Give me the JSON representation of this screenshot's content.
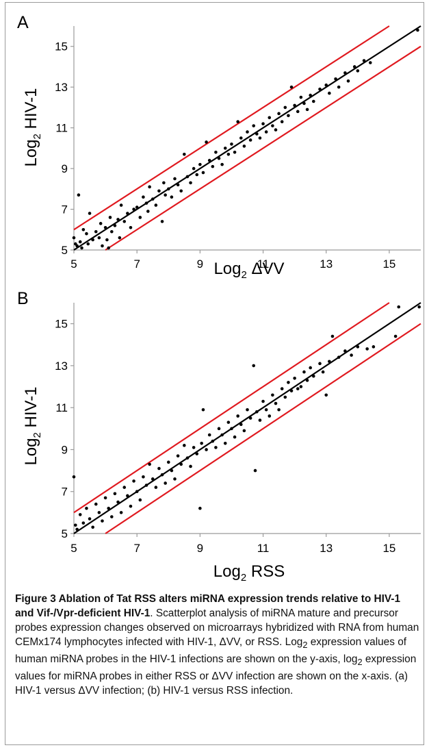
{
  "panels": [
    {
      "label": "A",
      "xlabel_main": "Log",
      "xlabel_sub": "2",
      "xlabel_rest": " ΔVV",
      "ylabel_main": "Log",
      "ylabel_sub": "2",
      "ylabel_rest": " HIV-1"
    },
    {
      "label": "B",
      "xlabel_main": "Log",
      "xlabel_sub": "2",
      "xlabel_rest": " RSS",
      "ylabel_main": "Log",
      "ylabel_sub": "2",
      "ylabel_rest": " HIV-1"
    }
  ],
  "chart_data": [
    {
      "type": "scatter",
      "panel": "A",
      "xlabel": "Log2 ΔVV",
      "ylabel": "Log2 HIV-1",
      "xlim": [
        5,
        16
      ],
      "ylim": [
        5,
        16
      ],
      "xticks": [
        5,
        7,
        9,
        11,
        13,
        15
      ],
      "yticks": [
        5,
        7,
        9,
        11,
        13,
        15
      ],
      "lines": [
        {
          "name": "",
          "color": "#000000",
          "x": [
            5,
            16
          ],
          "y": [
            5,
            16
          ]
        },
        {
          "name": "",
          "color": "#e0191f",
          "x": [
            5,
            15
          ],
          "y": [
            6,
            16
          ]
        },
        {
          "name": "",
          "color": "#e0191f",
          "x": [
            6,
            16
          ],
          "y": [
            5,
            15
          ]
        }
      ],
      "points": [
        [
          5.0,
          5.6
        ],
        [
          5.05,
          5.3
        ],
        [
          5.1,
          5.2
        ],
        [
          5.15,
          7.7
        ],
        [
          5.2,
          5.4
        ],
        [
          5.25,
          5.1
        ],
        [
          5.3,
          6.0
        ],
        [
          5.4,
          5.8
        ],
        [
          5.45,
          5.3
        ],
        [
          5.5,
          6.8
        ],
        [
          5.6,
          5.5
        ],
        [
          5.7,
          5.9
        ],
        [
          5.8,
          5.6
        ],
        [
          5.85,
          6.3
        ],
        [
          5.9,
          5.2
        ],
        [
          6.0,
          6.1
        ],
        [
          6.05,
          5.5
        ],
        [
          6.1,
          5.1
        ],
        [
          6.15,
          6.6
        ],
        [
          6.2,
          5.9
        ],
        [
          6.3,
          6.2
        ],
        [
          6.4,
          6.5
        ],
        [
          6.45,
          5.6
        ],
        [
          6.5,
          7.2
        ],
        [
          6.6,
          6.4
        ],
        [
          6.7,
          6.8
        ],
        [
          6.8,
          6.1
        ],
        [
          6.9,
          7.0
        ],
        [
          7.0,
          7.1
        ],
        [
          7.1,
          6.6
        ],
        [
          7.2,
          7.6
        ],
        [
          7.3,
          7.3
        ],
        [
          7.35,
          6.9
        ],
        [
          7.4,
          8.1
        ],
        [
          7.5,
          7.5
        ],
        [
          7.6,
          7.2
        ],
        [
          7.7,
          7.9
        ],
        [
          7.8,
          6.4
        ],
        [
          7.85,
          8.3
        ],
        [
          7.9,
          7.7
        ],
        [
          8.0,
          8.0
        ],
        [
          8.1,
          7.6
        ],
        [
          8.2,
          8.5
        ],
        [
          8.3,
          8.2
        ],
        [
          8.4,
          7.9
        ],
        [
          8.5,
          9.7
        ],
        [
          8.6,
          8.6
        ],
        [
          8.7,
          8.3
        ],
        [
          8.8,
          9.0
        ],
        [
          8.9,
          8.7
        ],
        [
          9.0,
          9.2
        ],
        [
          9.1,
          8.8
        ],
        [
          9.2,
          10.3
        ],
        [
          9.3,
          9.4
        ],
        [
          9.4,
          9.1
        ],
        [
          9.5,
          9.8
        ],
        [
          9.6,
          9.5
        ],
        [
          9.7,
          9.2
        ],
        [
          9.8,
          10.0
        ],
        [
          9.9,
          9.7
        ],
        [
          10.0,
          10.2
        ],
        [
          10.1,
          9.8
        ],
        [
          10.2,
          11.3
        ],
        [
          10.3,
          10.5
        ],
        [
          10.4,
          10.1
        ],
        [
          10.5,
          10.8
        ],
        [
          10.6,
          10.4
        ],
        [
          10.7,
          11.1
        ],
        [
          10.8,
          10.7
        ],
        [
          10.9,
          10.5
        ],
        [
          11.0,
          11.2
        ],
        [
          11.1,
          10.8
        ],
        [
          11.2,
          11.5
        ],
        [
          11.3,
          11.1
        ],
        [
          11.4,
          10.9
        ],
        [
          11.5,
          11.7
        ],
        [
          11.6,
          11.3
        ],
        [
          11.7,
          12.0
        ],
        [
          11.8,
          11.6
        ],
        [
          11.9,
          13.0
        ],
        [
          12.0,
          12.1
        ],
        [
          12.1,
          11.8
        ],
        [
          12.2,
          12.5
        ],
        [
          12.3,
          12.2
        ],
        [
          12.4,
          11.9
        ],
        [
          12.5,
          12.6
        ],
        [
          12.6,
          12.3
        ],
        [
          12.8,
          12.9
        ],
        [
          13.0,
          13.1
        ],
        [
          13.1,
          12.7
        ],
        [
          13.3,
          13.4
        ],
        [
          13.4,
          13.0
        ],
        [
          13.6,
          13.7
        ],
        [
          13.7,
          13.3
        ],
        [
          13.9,
          14.0
        ],
        [
          14.0,
          13.8
        ],
        [
          14.2,
          14.3
        ],
        [
          14.4,
          14.2
        ],
        [
          15.9,
          15.8
        ]
      ]
    },
    {
      "type": "scatter",
      "panel": "B",
      "xlabel": "Log2 RSS",
      "ylabel": "Log2 HIV-1",
      "xlim": [
        5,
        16
      ],
      "ylim": [
        5,
        16
      ],
      "xticks": [
        5,
        7,
        9,
        11,
        13,
        15
      ],
      "yticks": [
        5,
        7,
        9,
        11,
        13,
        15
      ],
      "lines": [
        {
          "name": "",
          "color": "#000000",
          "x": [
            5,
            16
          ],
          "y": [
            5,
            16
          ]
        },
        {
          "name": "",
          "color": "#e0191f",
          "x": [
            5,
            15
          ],
          "y": [
            6,
            16
          ]
        },
        {
          "name": "",
          "color": "#e0191f",
          "x": [
            6,
            16
          ],
          "y": [
            5,
            15
          ]
        }
      ],
      "points": [
        [
          5.0,
          7.7
        ],
        [
          5.05,
          5.4
        ],
        [
          5.1,
          5.2
        ],
        [
          5.2,
          5.9
        ],
        [
          5.3,
          5.5
        ],
        [
          5.4,
          6.2
        ],
        [
          5.5,
          5.7
        ],
        [
          5.6,
          5.3
        ],
        [
          5.7,
          6.4
        ],
        [
          5.8,
          6.0
        ],
        [
          5.9,
          5.6
        ],
        [
          6.0,
          6.7
        ],
        [
          6.1,
          6.2
        ],
        [
          6.2,
          5.8
        ],
        [
          6.3,
          6.9
        ],
        [
          6.4,
          6.5
        ],
        [
          6.5,
          6.0
        ],
        [
          6.6,
          7.2
        ],
        [
          6.7,
          6.8
        ],
        [
          6.8,
          6.3
        ],
        [
          6.9,
          7.5
        ],
        [
          7.0,
          7.0
        ],
        [
          7.1,
          6.6
        ],
        [
          7.2,
          7.7
        ],
        [
          7.3,
          7.3
        ],
        [
          7.4,
          8.3
        ],
        [
          7.5,
          7.6
        ],
        [
          7.6,
          7.2
        ],
        [
          7.7,
          8.1
        ],
        [
          7.8,
          7.8
        ],
        [
          7.9,
          7.4
        ],
        [
          8.0,
          8.4
        ],
        [
          8.1,
          8.0
        ],
        [
          8.2,
          7.6
        ],
        [
          8.3,
          8.7
        ],
        [
          8.4,
          8.3
        ],
        [
          8.5,
          9.2
        ],
        [
          8.6,
          8.6
        ],
        [
          8.7,
          8.2
        ],
        [
          8.8,
          9.1
        ],
        [
          8.9,
          8.8
        ],
        [
          9.0,
          6.2
        ],
        [
          9.05,
          9.3
        ],
        [
          9.1,
          10.9
        ],
        [
          9.2,
          9.0
        ],
        [
          9.3,
          9.7
        ],
        [
          9.4,
          9.4
        ],
        [
          9.5,
          9.1
        ],
        [
          9.6,
          10.0
        ],
        [
          9.7,
          9.7
        ],
        [
          9.8,
          9.3
        ],
        [
          9.9,
          10.3
        ],
        [
          10.0,
          10.0
        ],
        [
          10.1,
          9.6
        ],
        [
          10.2,
          10.6
        ],
        [
          10.3,
          10.2
        ],
        [
          10.4,
          9.9
        ],
        [
          10.5,
          10.9
        ],
        [
          10.6,
          10.5
        ],
        [
          10.7,
          13.0
        ],
        [
          10.75,
          8.0
        ],
        [
          10.8,
          10.8
        ],
        [
          10.9,
          10.4
        ],
        [
          11.0,
          11.3
        ],
        [
          11.1,
          10.9
        ],
        [
          11.2,
          10.6
        ],
        [
          11.3,
          11.6
        ],
        [
          11.4,
          11.2
        ],
        [
          11.5,
          10.9
        ],
        [
          11.6,
          11.9
        ],
        [
          11.7,
          11.5
        ],
        [
          11.8,
          12.2
        ],
        [
          11.9,
          11.8
        ],
        [
          12.0,
          12.4
        ],
        [
          12.1,
          11.9
        ],
        [
          12.2,
          12.0
        ],
        [
          12.3,
          12.7
        ],
        [
          12.4,
          12.3
        ],
        [
          12.5,
          12.9
        ],
        [
          12.6,
          12.5
        ],
        [
          12.8,
          13.1
        ],
        [
          12.9,
          12.7
        ],
        [
          13.0,
          11.6
        ],
        [
          13.1,
          13.2
        ],
        [
          13.2,
          14.4
        ],
        [
          13.4,
          13.4
        ],
        [
          13.6,
          13.7
        ],
        [
          13.8,
          13.5
        ],
        [
          14.0,
          13.9
        ],
        [
          14.3,
          13.8
        ],
        [
          14.5,
          13.9
        ],
        [
          15.2,
          14.4
        ],
        [
          15.3,
          15.8
        ],
        [
          15.95,
          15.8
        ]
      ]
    }
  ],
  "caption": {
    "bold": "Figure 3 Ablation of Tat RSS alters miRNA expression trends relative to HIV-1 and Vif-/Vpr-deficient HIV-1",
    "part1": ". Scatterplot analysis of miRNA mature and precursor probes expression changes observed on microarrays hybridized with RNA from human CEMx174 lymphocytes infected with HIV-1, ΔVV, or RSS. Log",
    "sub1": "2",
    "part2": " expression values of human miRNA probes in the HIV-1 infections are shown on the y-axis, log",
    "sub2": "2",
    "part3": " expression values for miRNA probes in either RSS or ΔVV infection are shown on the x-axis. (a) HIV-1 versus ΔVV infection; (b) HIV-1 versus RSS infection."
  }
}
